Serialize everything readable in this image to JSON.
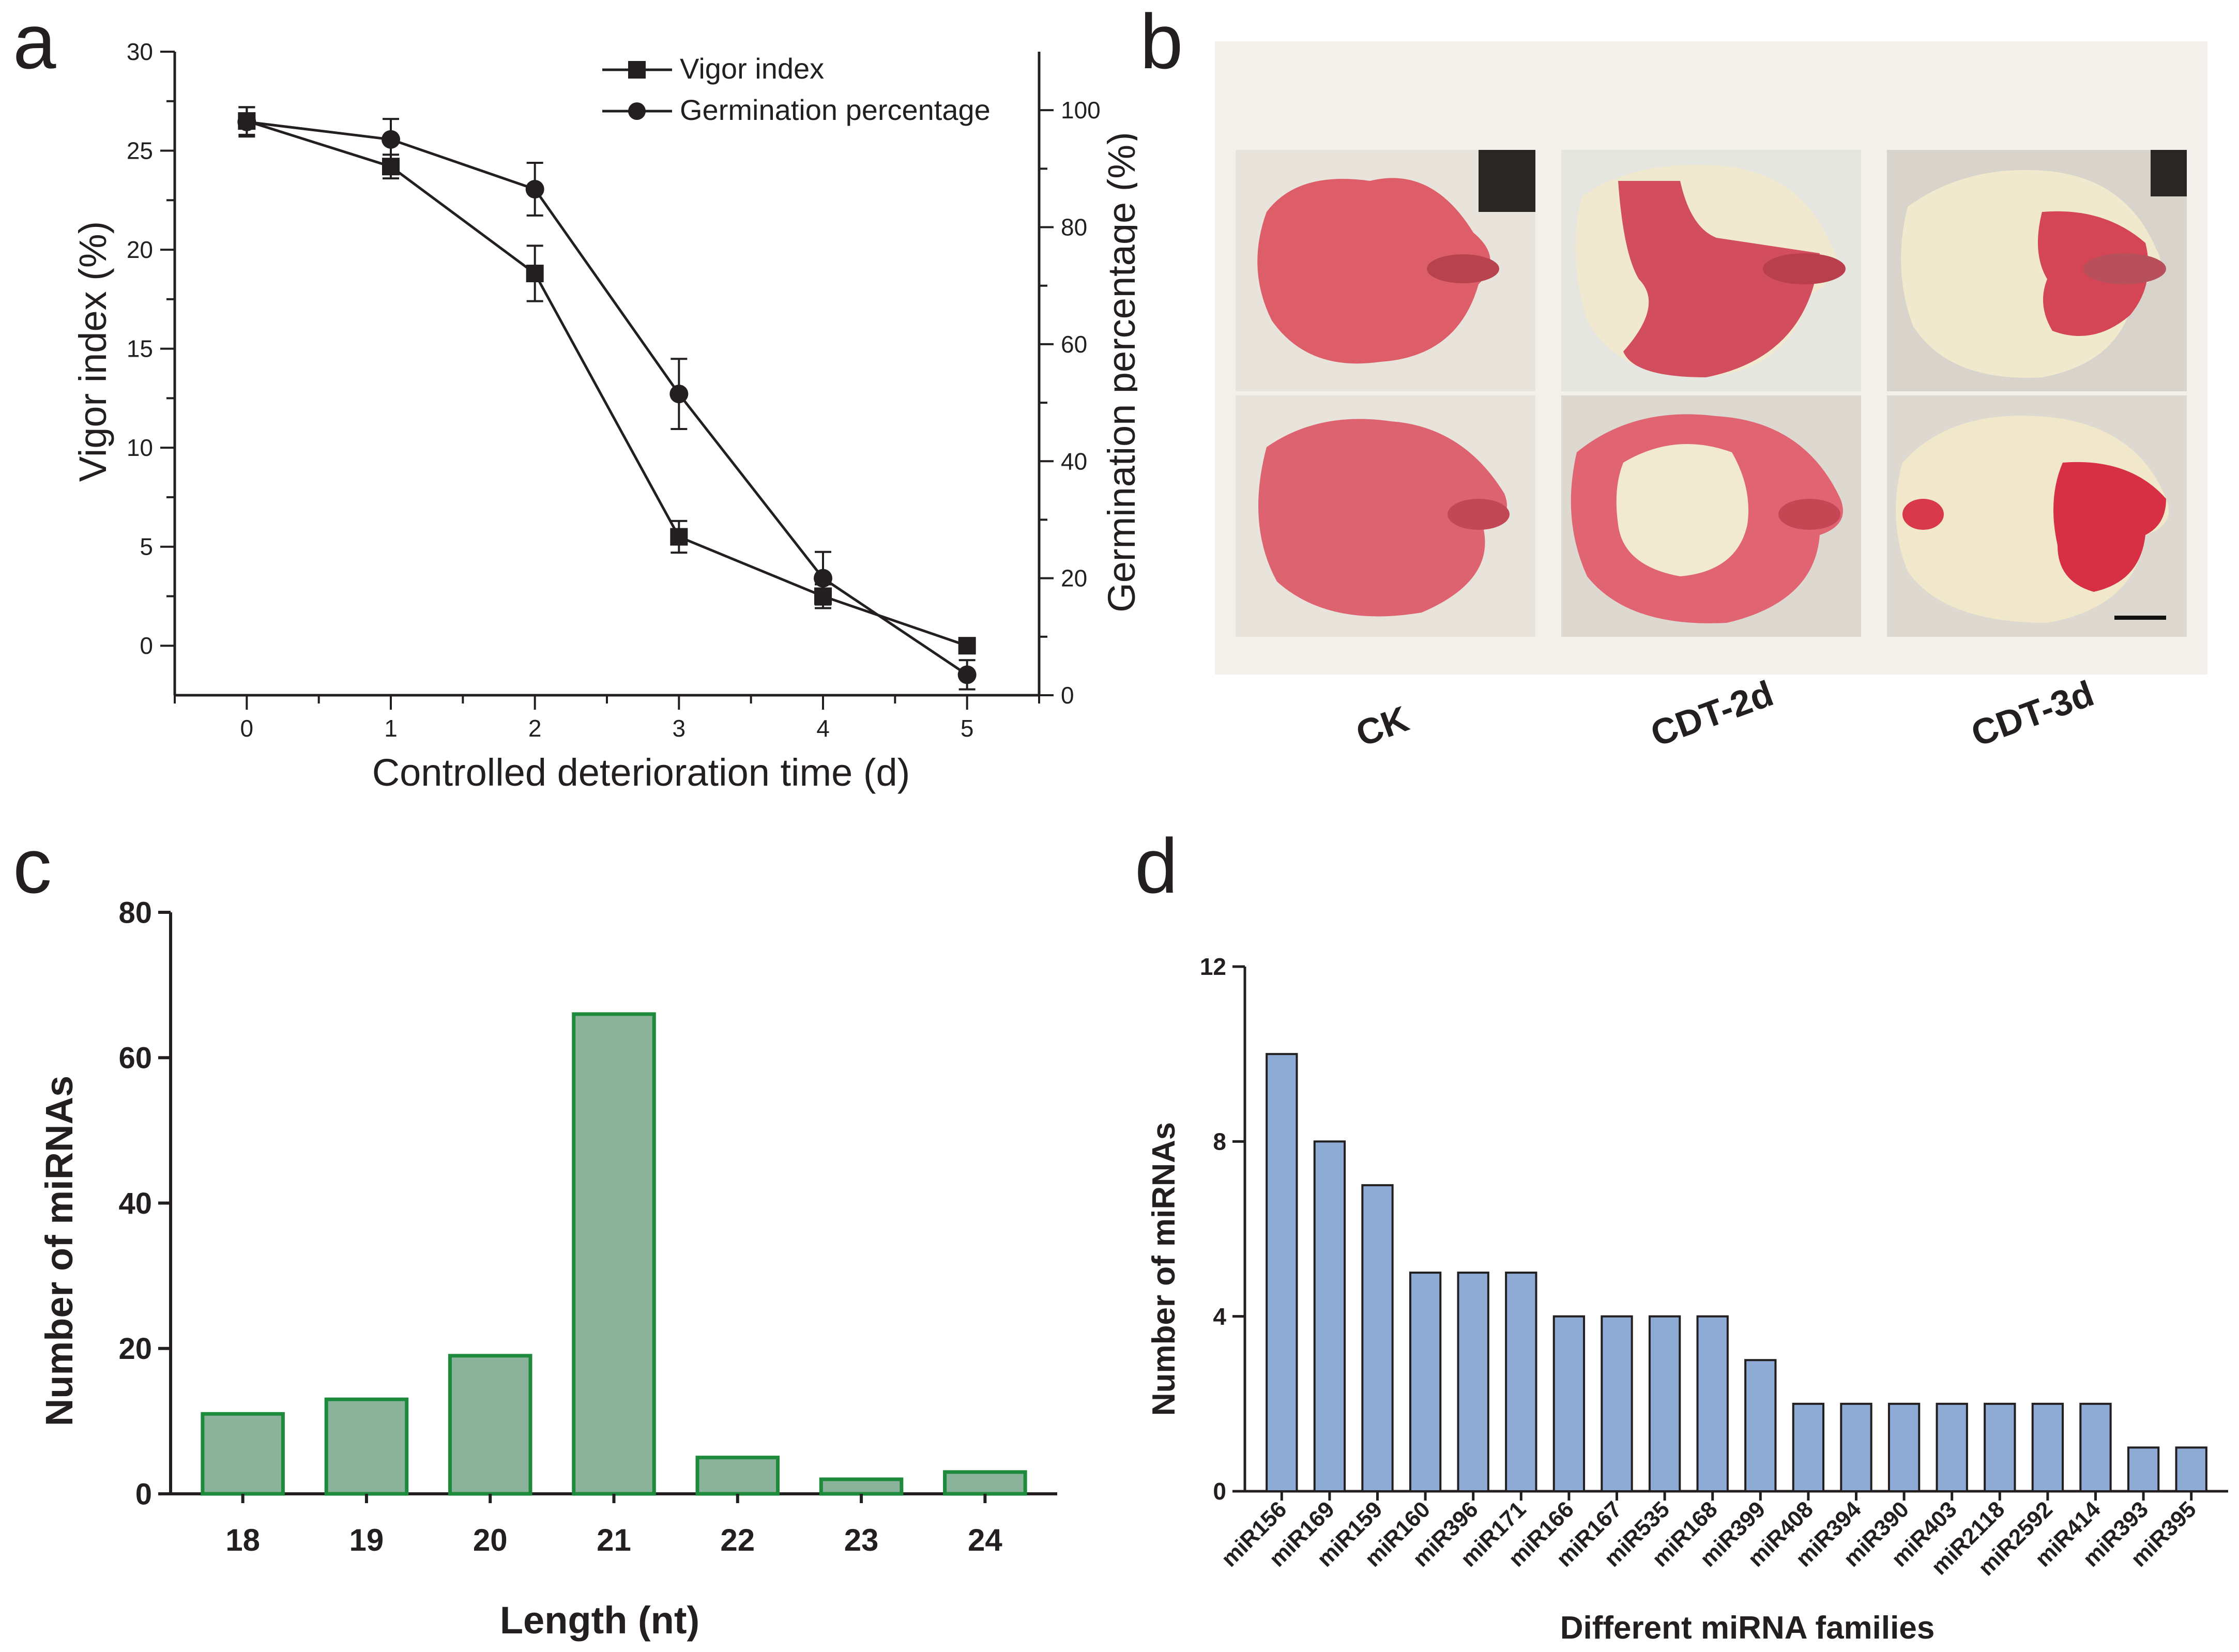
{
  "panels": {
    "a": "a",
    "b": "b",
    "c": "c",
    "d": "d"
  },
  "chart_data": [
    {
      "panel": "a",
      "type": "line",
      "xlabel": "Controlled deterioration time (d)",
      "ylabel": "Vigor index (%)",
      "y2label": "Germination percentage (%)",
      "x": [
        0,
        1,
        2,
        3,
        4,
        5
      ],
      "xlim": [
        -0.5,
        5.5
      ],
      "ylim": [
        -2.5,
        30
      ],
      "y2lim": [
        0,
        110
      ],
      "yticks": [
        0,
        5,
        10,
        15,
        20,
        25,
        30
      ],
      "y2ticks": [
        0,
        20,
        40,
        60,
        80,
        100
      ],
      "series": [
        {
          "name": "Vigor index",
          "marker": "square",
          "axis": "left",
          "values": [
            26.5,
            24.2,
            18.8,
            5.5,
            2.5,
            0.0
          ],
          "errors": [
            0.7,
            0.6,
            1.4,
            0.8,
            0.6,
            0.2
          ]
        },
        {
          "name": "Germination percentage",
          "marker": "circle",
          "axis": "right",
          "values": [
            98,
            95,
            86.5,
            51.5,
            20,
            3.5
          ],
          "errors": [
            2.5,
            3.5,
            4.5,
            6,
            4.5,
            2.5
          ]
        }
      ],
      "legend": "top-right"
    },
    {
      "panel": "c",
      "type": "bar",
      "categories": [
        "18",
        "19",
        "20",
        "21",
        "22",
        "23",
        "24"
      ],
      "values": [
        11,
        13,
        19,
        66,
        5,
        2,
        3
      ],
      "xlabel": "Length (nt)",
      "ylabel": "Number of miRNAs",
      "ylim": [
        0,
        80
      ],
      "yticks": [
        0,
        20,
        40,
        60,
        80
      ],
      "fill": "#8bb29b",
      "stroke": "#1e8a3c"
    },
    {
      "panel": "d",
      "type": "bar",
      "categories": [
        "miR156",
        "miR169",
        "miR159",
        "miR160",
        "miR396",
        "miR171",
        "miR166",
        "miR167",
        "miR535",
        "miR168",
        "miR399",
        "miR408",
        "miR394",
        "miR390",
        "miR403",
        "miR2118",
        "miR2592",
        "miR414",
        "miR393",
        "miR395"
      ],
      "values": [
        10,
        8,
        7,
        5,
        5,
        5,
        4,
        4,
        4,
        4,
        3,
        2,
        2,
        2,
        2,
        2,
        2,
        2,
        1,
        1
      ],
      "xlabel": "Different miRNA families",
      "ylabel": "Number of miRNAs",
      "ylim": [
        0,
        12
      ],
      "yticks": [
        0,
        4,
        8,
        12
      ],
      "fill": "#8eabd6",
      "stroke": "#231f20"
    }
  ],
  "seed_photos": {
    "columns": [
      {
        "label": "CK",
        "top": "ck-top",
        "bottom": "ck-bottom"
      },
      {
        "label": "CDT-2d",
        "top": "cdt2-top",
        "bottom": "cdt2-bottom"
      },
      {
        "label": "CDT-3d",
        "top": "cdt3-top",
        "bottom": "cdt3-bottom"
      }
    ],
    "stain_color": "#d9505e",
    "unstained_color": "#efe6c8"
  }
}
